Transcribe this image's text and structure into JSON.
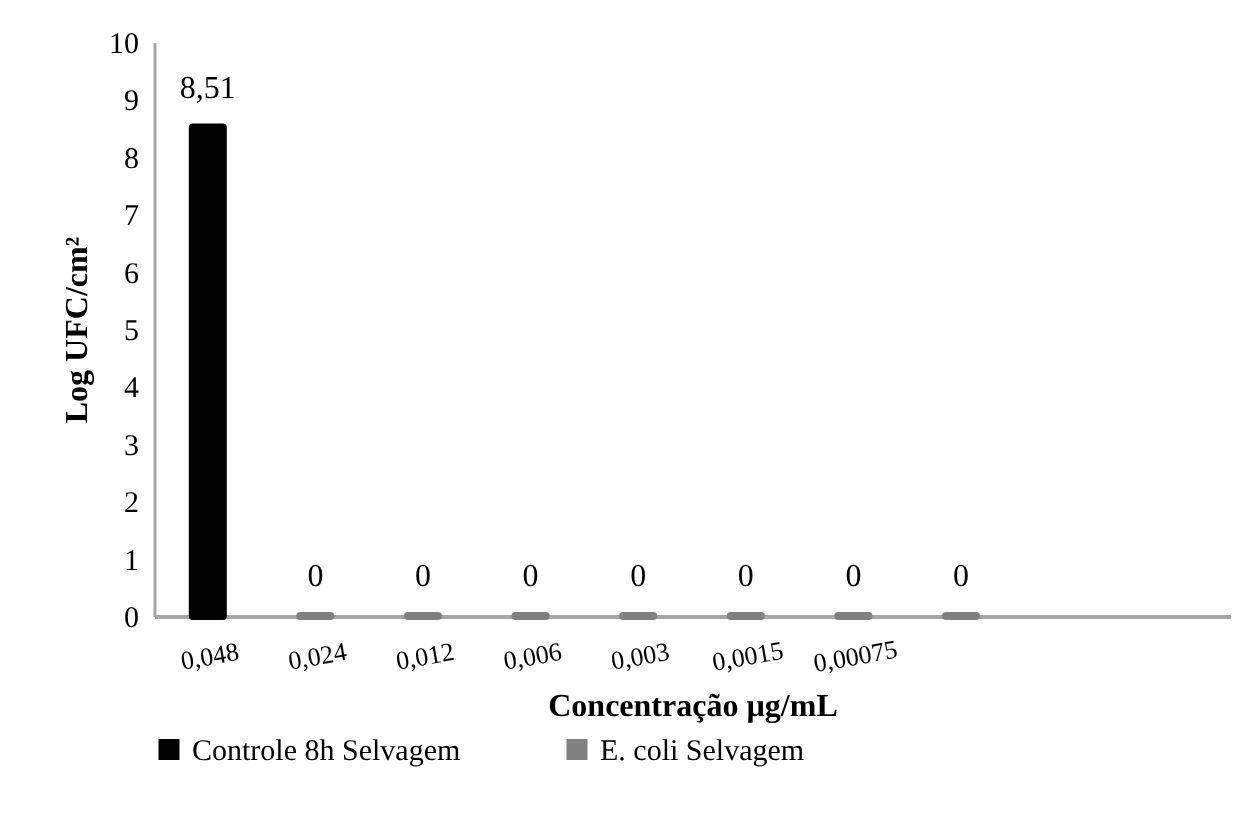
{
  "chart_data": {
    "type": "bar",
    "ylabel": "Log UFC/cm²",
    "xlabel": "Concentração µg/mL",
    "categories": [
      "0,048",
      "0,024",
      "0,012",
      "0,006",
      "0,003",
      "0,0015",
      "0,00075",
      null,
      null,
      null
    ],
    "series": [
      {
        "name": "Controle 8h Selvagem",
        "color": "#000000",
        "values": [
          8.51,
          null,
          null,
          null,
          null,
          null,
          null,
          null,
          null,
          null
        ],
        "value_labels": [
          "8,51",
          null,
          null,
          null,
          null,
          null,
          null,
          null,
          null,
          null
        ]
      },
      {
        "name": "E. coli Selvagem",
        "color": "#808080",
        "values": [
          null,
          0,
          0,
          0,
          0,
          0,
          0,
          0,
          null,
          null
        ],
        "value_labels": [
          null,
          "0",
          "0",
          "0",
          "0",
          "0",
          "0",
          "0",
          null,
          null
        ]
      }
    ],
    "ylim": [
      0,
      10
    ],
    "yticks": [
      0,
      1,
      2,
      3,
      4,
      5,
      6,
      7,
      8,
      9,
      10
    ],
    "grid": false,
    "legend": "bottom"
  }
}
